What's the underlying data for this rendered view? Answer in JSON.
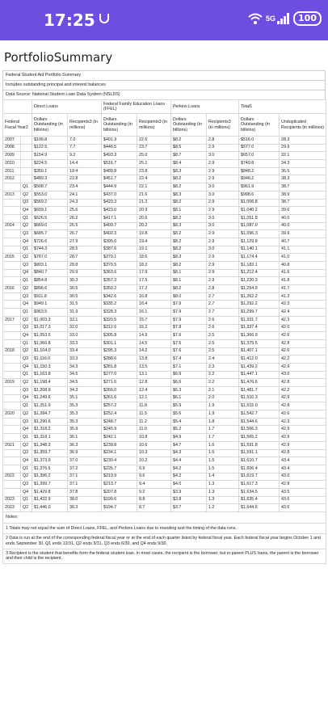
{
  "status": {
    "time": "17:25",
    "battery": "100",
    "network": "5G"
  },
  "page_title": "PortfolioSummary",
  "info": [
    "Federal Student Aid Portfolio Summary",
    "Includes outstanding principal and interest balances",
    "Data Source: National Student Loan Data System (NSLDS)"
  ],
  "groups": {
    "direct": "Direct Loans",
    "ffel": "Federal Family Education Loans (FFEL)",
    "perkins": "Perkins Loans",
    "total": "Total1"
  },
  "col_headers": {
    "fy": "Federal Fiscal Year2",
    "dollars": "Dollars Outstanding (in billions)",
    "recipients": "Recipients3 (in millions)",
    "unduplicated": "Unduplicated Recipients (in millions)"
  },
  "rows": [
    {
      "year": "2007",
      "q": "",
      "d": [
        "$106.8",
        "7.0",
        "$401.9",
        "22.6",
        "$8.2",
        "2.8",
        "$516.0",
        "28.3"
      ]
    },
    {
      "year": "2008",
      "q": "",
      "d": [
        "$122.5",
        "7.7",
        "$446.5",
        "23.7",
        "$8.5",
        "2.9",
        "$577.0",
        "29.9"
      ]
    },
    {
      "year": "2009",
      "q": "",
      "d": [
        "$154.9",
        "9.2",
        "$493.3",
        "25.0",
        "$8.7",
        "3.0",
        "$657.0",
        "32.1"
      ]
    },
    {
      "year": "2010",
      "q": "",
      "d": [
        "$224.5",
        "14.4",
        "$516.7",
        "25.1",
        "$8.4",
        "2.9",
        "$749.8",
        "34.3"
      ]
    },
    {
      "year": "2011",
      "q": "",
      "d": [
        "$350.1",
        "19.4",
        "$489.8",
        "23.8",
        "$8.3",
        "2.9",
        "$848.2",
        "36.5"
      ]
    },
    {
      "year": "2012",
      "q": "",
      "d": [
        "$489.3",
        "22.8",
        "$451.7",
        "22.4",
        "$8.2",
        "2.9",
        "$948.2",
        "38.3"
      ]
    },
    {
      "year": "",
      "q": "Q1",
      "d": [
        "$508.7",
        "23.4",
        "$444.9",
        "22.1",
        "$8.2",
        "3.0",
        "$961.9",
        "38.7"
      ]
    },
    {
      "year": "2013",
      "q": "Q2",
      "d": [
        "$553.0",
        "24.1",
        "$437.0",
        "21.6",
        "$8.3",
        "3.0",
        "$998.6",
        "38.9"
      ]
    },
    {
      "year": "",
      "q": "Q3",
      "d": [
        "$569.2",
        "24.3",
        "$429.3",
        "21.2",
        "$8.2",
        "2.9",
        "$1,006.8",
        "38.7"
      ]
    },
    {
      "year": "",
      "q": "Q4",
      "d": [
        "$609.1",
        "25.6",
        "$423.0",
        "20.9",
        "$8.1",
        "2.9",
        "$1,040.2",
        "39.6"
      ]
    },
    {
      "year": "",
      "q": "Q1",
      "d": [
        "$626.5",
        "26.2",
        "$417.1",
        "20.6",
        "$8.2",
        "3.0",
        "$1,051.8",
        "40.0"
      ]
    },
    {
      "year": "2014",
      "q": "Q2",
      "d": [
        "$669.0",
        "26.5",
        "$409.7",
        "20.2",
        "$8.3",
        "3.0",
        "$1,087.0",
        "40.0"
      ]
    },
    {
      "year": "",
      "q": "Q3",
      "d": [
        "$685.7",
        "26.7",
        "$402.3",
        "19.8",
        "$8.2",
        "2.9",
        "$1,096.3",
        "39.9"
      ]
    },
    {
      "year": "",
      "q": "Q4",
      "d": [
        "$726.6",
        "27.9",
        "$395.0",
        "19.4",
        "$8.2",
        "2.9",
        "$1,129.8",
        "40.7"
      ]
    },
    {
      "year": "",
      "q": "Q1",
      "d": [
        "$744.3",
        "28.5",
        "$387.6",
        "19.1",
        "$8.2",
        "3.0",
        "$1,140.1",
        "41.1"
      ]
    },
    {
      "year": "2015",
      "q": "Q2",
      "d": [
        "$787.0",
        "28.7",
        "$379.1",
        "18.6",
        "$8.3",
        "2.9",
        "$1,174.4",
        "41.0"
      ]
    },
    {
      "year": "",
      "q": "Q3",
      "d": [
        "$803.1",
        "28.8",
        "$370.5",
        "18.2",
        "$8.2",
        "2.9",
        "$1,182.1",
        "40.8"
      ]
    },
    {
      "year": "",
      "q": "Q4",
      "d": [
        "$840.7",
        "29.9",
        "$363.6",
        "17.9",
        "$8.1",
        "2.9",
        "$1,212.4",
        "41.6"
      ]
    },
    {
      "year": "",
      "q": "Q1",
      "d": [
        "$854.8",
        "30.3",
        "$357.3",
        "17.5",
        "$8.1",
        "2.9",
        "$1,220.3",
        "41.8"
      ]
    },
    {
      "year": "2016",
      "q": "Q2",
      "d": [
        "$896.6",
        "30.5",
        "$350.2",
        "17.2",
        "$8.2",
        "2.8",
        "$1,254.9",
        "41.7"
      ]
    },
    {
      "year": "",
      "q": "Q3",
      "d": [
        "$911.8",
        "30.5",
        "$342.6",
        "16.8",
        "$8.0",
        "2.7",
        "$1,262.2",
        "41.3"
      ]
    },
    {
      "year": "",
      "q": "Q4",
      "d": [
        "$949.1",
        "31.5",
        "$335.2",
        "16.4",
        "$7.9",
        "2.7",
        "$1,292.2",
        "42.3"
      ]
    },
    {
      "year": "",
      "q": "Q1",
      "d": [
        "$963.5",
        "31.9",
        "$328.3",
        "16.1",
        "$7.9",
        "2.7",
        "$1,299.7",
        "42.4"
      ]
    },
    {
      "year": "2017",
      "q": "Q2",
      "d": [
        "$1,003.3",
        "32.1",
        "$320.5",
        "15.7",
        "$7.9",
        "2.6",
        "$1,331.7",
        "42.3"
      ]
    },
    {
      "year": "",
      "q": "Q3",
      "d": [
        "$1,017.3",
        "32.0",
        "$312.6",
        "15.2",
        "$7.8",
        "2.6",
        "$1,337.4",
        "42.0"
      ]
    },
    {
      "year": "",
      "q": "Q4",
      "d": [
        "$1,053.5",
        "33.0",
        "$305.8",
        "14.9",
        "$7.6",
        "2.5",
        "$1,366.9",
        "42.6"
      ]
    },
    {
      "year": "",
      "q": "Q1",
      "d": [
        "$1,066.8",
        "33.3",
        "$301.1",
        "14.5",
        "$7.6",
        "2.5",
        "$1,375.5",
        "42.8"
      ]
    },
    {
      "year": "2018",
      "q": "Q2",
      "d": [
        "$1,104.0",
        "33.4",
        "$295.3",
        "14.2",
        "$7.6",
        "2.5",
        "$1,407.1",
        "42.6"
      ]
    },
    {
      "year": "",
      "q": "Q3",
      "d": [
        "$1,116.0",
        "33.3",
        "$288.6",
        "13.8",
        "$7.4",
        "2.4",
        "$1,412.0",
        "42.2"
      ]
    },
    {
      "year": "",
      "q": "Q4",
      "d": [
        "$1,150.3",
        "34.3",
        "$281.8",
        "13.5",
        "$7.1",
        "2.3",
        "$1,439.2",
        "42.9"
      ]
    },
    {
      "year": "",
      "q": "Q1",
      "d": [
        "$1,163.8",
        "34.5",
        "$277.0",
        "13.1",
        "$6.9",
        "2.2",
        "$1,447.1",
        "43.0"
      ]
    },
    {
      "year": "2019",
      "q": "Q2",
      "d": [
        "$1,198.4",
        "34.5",
        "$271.6",
        "12.8",
        "$6.6",
        "2.2",
        "$1,476.6",
        "42.8"
      ]
    },
    {
      "year": "",
      "q": "Q3",
      "d": [
        "$1,208.9",
        "34.3",
        "$266.0",
        "12.4",
        "$6.3",
        "2.1",
        "$1,481.7",
        "42.2"
      ]
    },
    {
      "year": "",
      "q": "Q4",
      "d": [
        "$1,249.6",
        "35.1",
        "$261.6",
        "12.1",
        "$6.1",
        "2.0",
        "$1,510.3",
        "42.9"
      ]
    },
    {
      "year": "",
      "q": "Q1",
      "d": [
        "$1,251.9",
        "35.3",
        "$257.2",
        "11.8",
        "$5.9",
        "1.9",
        "$1,515.0",
        "42.8"
      ]
    },
    {
      "year": "2020",
      "q": "Q2",
      "d": [
        "$1,284.7",
        "35.3",
        "$252.4",
        "11.5",
        "$5.6",
        "1.9",
        "$1,542.7",
        "42.6"
      ]
    },
    {
      "year": "",
      "q": "Q3",
      "d": [
        "$1,290.6",
        "35.3",
        "$248.7",
        "11.2",
        "$5.4",
        "1.8",
        "$1,544.6",
        "42.3"
      ]
    },
    {
      "year": "",
      "q": "Q4",
      "d": [
        "$1,318.2",
        "35.9",
        "$245.9",
        "11.0",
        "$5.2",
        "1.7",
        "$1,566.3",
        "42.9"
      ]
    },
    {
      "year": "",
      "q": "Q1",
      "d": [
        "$1,318.1",
        "36.1",
        "$242.1",
        "10.8",
        "$4.9",
        "1.7",
        "$1,565.2",
        "42.9"
      ]
    },
    {
      "year": "2021",
      "q": "Q2",
      "d": [
        "$1,348.3",
        "36.3",
        "$239.8",
        "10.6",
        "$4.7",
        "1.6",
        "$1,591.8",
        "42.9"
      ]
    },
    {
      "year": "",
      "q": "Q3",
      "d": [
        "$1,359.7",
        "36.9",
        "$234.1",
        "10.3",
        "$4.3",
        "1.6",
        "$1,591.1",
        "42.8"
      ]
    },
    {
      "year": "",
      "q": "Q4",
      "d": [
        "$1,373.9",
        "37.0",
        "$230.4",
        "10.2",
        "$4.4",
        "1.5",
        "$1,610.7",
        "43.4"
      ]
    },
    {
      "year": "",
      "q": "Q1",
      "d": [
        "$1,376.5",
        "37.2",
        "$225.7",
        "9.9",
        "$4.2",
        "1.5",
        "$1,606.4",
        "43.4"
      ]
    },
    {
      "year": "2022",
      "q": "Q2",
      "d": [
        "$1,396.2",
        "37.1",
        "$219.9",
        "9.6",
        "$4.2",
        "1.4",
        "$1,619.7",
        "43.0"
      ]
    },
    {
      "year": "",
      "q": "Q3",
      "d": [
        "$1,399.7",
        "37.1",
        "$213.7",
        "9.4",
        "$4.0",
        "1.3",
        "$1,617.3",
        "42.8"
      ]
    },
    {
      "year": "",
      "q": "Q4",
      "d": [
        "$1,429.8",
        "37.8",
        "$207.8",
        "9.2",
        "$3.9",
        "1.3",
        "$1,634.5",
        "43.5"
      ]
    },
    {
      "year": "2023",
      "q": "Q1",
      "d": [
        "$1,432.9",
        "38.0",
        "$199.6",
        "8.8",
        "$3.8",
        "1.3",
        "$1,635.4",
        "43.6"
      ]
    },
    {
      "year": "2023",
      "q": "Q2",
      "d": [
        "$1,446.0",
        "38.3",
        "$194.7",
        "8.7",
        "$3.7",
        "1.2",
        "$1,644.5",
        "43.6"
      ]
    }
  ],
  "notes_label": "Notes:",
  "notes": [
    "1 Totals may not equal the sum of Direct Loans, FFEL, and Perkins Loans due to rounding and the timing of the data runs.",
    "2 Data is run at the end of the corresponding federal fiscal year or at the end of each quarter listed by federal fiscal year. Each federal fiscal year begins October 1 and ends September 30. Q1 ends 12/31, Q2 ends 3/31, Q3 ends 6/30, and Q4 ends 9/30.",
    "3 Recipient is the student that benefits from the federal student loan. In most cases, the recipient is the borrower, but in parent PLUS loans, the parent is the borrower and their child is the recipient."
  ]
}
